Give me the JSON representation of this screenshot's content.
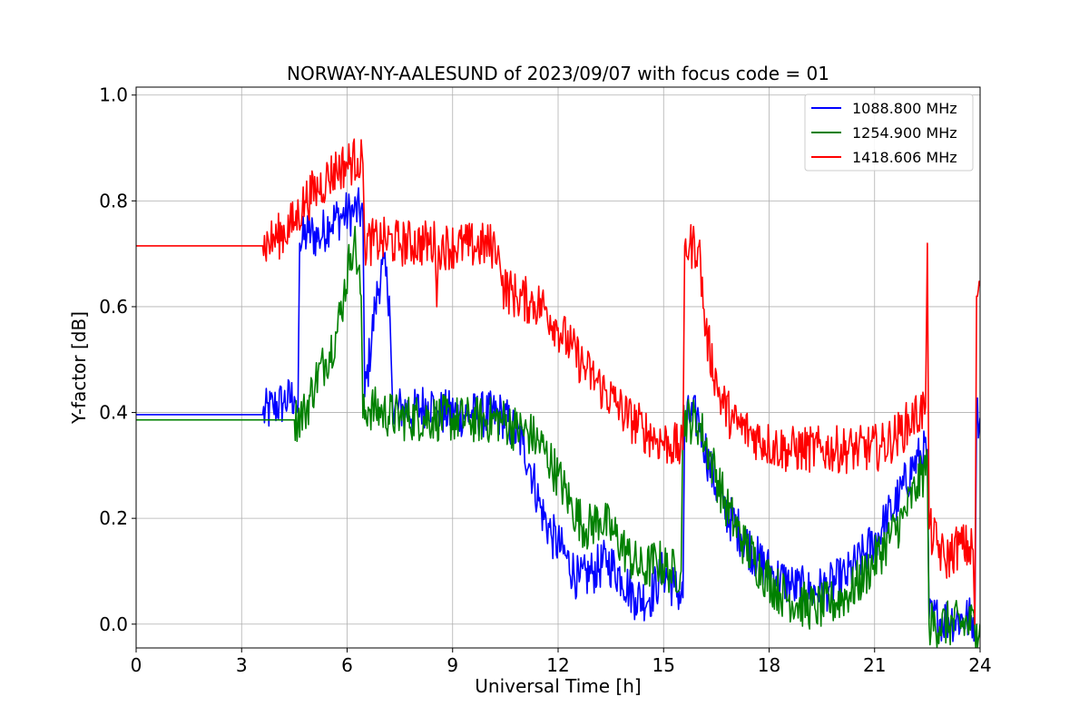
{
  "chart_data": {
    "type": "line",
    "title": "NORWAY-NY-AALESUND of 2023/09/07 with focus code = 01",
    "xlabel": "Universal Time [h]",
    "ylabel": "Y-factor [dB]",
    "xlim": [
      0,
      24
    ],
    "ylim": [
      -0.045,
      1.015
    ],
    "xticks": [
      "0",
      "3",
      "6",
      "9",
      "12",
      "15",
      "18",
      "21",
      "24"
    ],
    "yticks": [
      "0.0",
      "0.2",
      "0.4",
      "0.6",
      "0.8",
      "1.0"
    ],
    "grid": true,
    "legend_position": "upper right",
    "series": [
      {
        "name": "1088.800 MHz",
        "color": "#0000ff",
        "points": [
          [
            0,
            0.396
          ],
          [
            3.6,
            0.396
          ],
          [
            3.9,
            0.41
          ],
          [
            4.2,
            0.42
          ],
          [
            4.5,
            0.43
          ],
          [
            4.6,
            0.4
          ],
          [
            4.65,
            0.72
          ],
          [
            4.9,
            0.74
          ],
          [
            5.2,
            0.73
          ],
          [
            5.5,
            0.76
          ],
          [
            5.8,
            0.77
          ],
          [
            6.2,
            0.78
          ],
          [
            6.45,
            0.78
          ],
          [
            6.5,
            0.43
          ],
          [
            6.8,
            0.6
          ],
          [
            7.0,
            0.68
          ],
          [
            7.2,
            0.62
          ],
          [
            7.3,
            0.4
          ],
          [
            7.6,
            0.41
          ],
          [
            7.9,
            0.4
          ],
          [
            8.3,
            0.42
          ],
          [
            8.5,
            0.41
          ],
          [
            8.6,
            0.4
          ],
          [
            9.5,
            0.396
          ],
          [
            10.4,
            0.396
          ],
          [
            10.7,
            0.37
          ],
          [
            11.0,
            0.34
          ],
          [
            11.2,
            0.3
          ],
          [
            11.5,
            0.22
          ],
          [
            11.8,
            0.17
          ],
          [
            12.2,
            0.13
          ],
          [
            12.6,
            0.08
          ],
          [
            13.0,
            0.1
          ],
          [
            13.4,
            0.12
          ],
          [
            13.8,
            0.09
          ],
          [
            14.2,
            0.05
          ],
          [
            14.6,
            0.05
          ],
          [
            15.0,
            0.1
          ],
          [
            15.3,
            0.07
          ],
          [
            15.55,
            0.05
          ],
          [
            15.6,
            0.39
          ],
          [
            16.0,
            0.39
          ],
          [
            16.3,
            0.3
          ],
          [
            16.7,
            0.22
          ],
          [
            17.2,
            0.17
          ],
          [
            17.7,
            0.12
          ],
          [
            18.2,
            0.09
          ],
          [
            18.7,
            0.07
          ],
          [
            19.2,
            0.06
          ],
          [
            19.7,
            0.07
          ],
          [
            20.2,
            0.09
          ],
          [
            20.7,
            0.13
          ],
          [
            21.2,
            0.18
          ],
          [
            21.7,
            0.24
          ],
          [
            22.1,
            0.3
          ],
          [
            22.5,
            0.33
          ],
          [
            22.55,
            0.01
          ],
          [
            23.85,
            0.01
          ],
          [
            23.9,
            0.39
          ],
          [
            24,
            0.39
          ]
        ]
      },
      {
        "name": "1254.900 MHz",
        "color": "#008000",
        "points": [
          [
            0,
            0.386
          ],
          [
            4.5,
            0.386
          ],
          [
            4.8,
            0.4
          ],
          [
            5.1,
            0.46
          ],
          [
            5.4,
            0.5
          ],
          [
            5.7,
            0.55
          ],
          [
            5.9,
            0.62
          ],
          [
            6.1,
            0.7
          ],
          [
            6.2,
            0.73
          ],
          [
            6.4,
            0.62
          ],
          [
            6.45,
            0.39
          ],
          [
            6.6,
            0.41
          ],
          [
            7.0,
            0.4
          ],
          [
            7.5,
            0.39
          ],
          [
            8.5,
            0.39
          ],
          [
            9.5,
            0.386
          ],
          [
            10.4,
            0.386
          ],
          [
            10.8,
            0.37
          ],
          [
            11.2,
            0.36
          ],
          [
            11.6,
            0.33
          ],
          [
            12.0,
            0.28
          ],
          [
            12.4,
            0.22
          ],
          [
            12.8,
            0.18
          ],
          [
            13.2,
            0.2
          ],
          [
            13.6,
            0.17
          ],
          [
            14.0,
            0.13
          ],
          [
            14.4,
            0.1
          ],
          [
            14.8,
            0.12
          ],
          [
            15.2,
            0.1
          ],
          [
            15.5,
            0.1
          ],
          [
            15.55,
            0.39
          ],
          [
            16.0,
            0.38
          ],
          [
            16.4,
            0.3
          ],
          [
            16.8,
            0.22
          ],
          [
            17.3,
            0.15
          ],
          [
            17.8,
            0.1
          ],
          [
            18.3,
            0.06
          ],
          [
            18.8,
            0.04
          ],
          [
            19.3,
            0.03
          ],
          [
            19.8,
            0.04
          ],
          [
            20.3,
            0.06
          ],
          [
            20.8,
            0.1
          ],
          [
            21.3,
            0.15
          ],
          [
            21.8,
            0.2
          ],
          [
            22.2,
            0.26
          ],
          [
            22.5,
            0.3
          ],
          [
            22.55,
            0.0
          ],
          [
            23.9,
            0.0
          ],
          [
            24,
            0.0
          ]
        ]
      },
      {
        "name": "1418.606 MHz",
        "color": "#ff0000",
        "points": [
          [
            0,
            0.715
          ],
          [
            3.6,
            0.715
          ],
          [
            4.0,
            0.73
          ],
          [
            4.5,
            0.76
          ],
          [
            4.8,
            0.8
          ],
          [
            5.1,
            0.82
          ],
          [
            5.4,
            0.84
          ],
          [
            5.7,
            0.86
          ],
          [
            6.0,
            0.87
          ],
          [
            6.3,
            0.88
          ],
          [
            6.45,
            0.87
          ],
          [
            6.5,
            0.72
          ],
          [
            7.0,
            0.725
          ],
          [
            7.5,
            0.72
          ],
          [
            8.5,
            0.72
          ],
          [
            8.55,
            0.6
          ],
          [
            8.6,
            0.715
          ],
          [
            9.5,
            0.715
          ],
          [
            10.3,
            0.715
          ],
          [
            10.4,
            0.64
          ],
          [
            10.8,
            0.62
          ],
          [
            11.2,
            0.61
          ],
          [
            11.6,
            0.6
          ],
          [
            12.0,
            0.56
          ],
          [
            12.4,
            0.52
          ],
          [
            12.8,
            0.48
          ],
          [
            13.2,
            0.45
          ],
          [
            13.6,
            0.42
          ],
          [
            14.0,
            0.39
          ],
          [
            14.4,
            0.37
          ],
          [
            14.8,
            0.35
          ],
          [
            15.2,
            0.34
          ],
          [
            15.55,
            0.33
          ],
          [
            15.6,
            0.715
          ],
          [
            16.0,
            0.715
          ],
          [
            16.2,
            0.55
          ],
          [
            16.6,
            0.43
          ],
          [
            17.0,
            0.38
          ],
          [
            17.5,
            0.36
          ],
          [
            18.0,
            0.34
          ],
          [
            18.5,
            0.33
          ],
          [
            19.5,
            0.33
          ],
          [
            20.5,
            0.33
          ],
          [
            21.2,
            0.335
          ],
          [
            21.7,
            0.36
          ],
          [
            22.1,
            0.39
          ],
          [
            22.45,
            0.41
          ],
          [
            22.5,
            0.72
          ],
          [
            22.55,
            0.18
          ],
          [
            23.0,
            0.12
          ],
          [
            23.4,
            0.15
          ],
          [
            23.8,
            0.14
          ],
          [
            23.85,
            0.0
          ],
          [
            23.9,
            0.62
          ],
          [
            24,
            0.64
          ]
        ]
      }
    ]
  }
}
